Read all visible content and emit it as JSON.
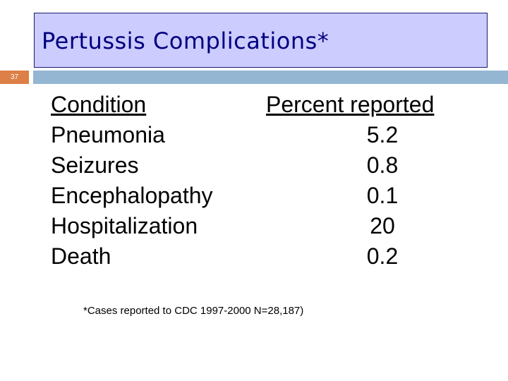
{
  "slide": {
    "title": "Pertussis Complications*",
    "number": "37",
    "footnote": "*Cases reported to CDC 1997-2000  N=28,187)"
  },
  "table": {
    "headers": [
      "Condition",
      "Percent reported"
    ],
    "rows": [
      [
        "Pneumonia",
        "5.2"
      ],
      [
        "Seizures",
        "0.8"
      ],
      [
        "Encephalopathy",
        "0.1"
      ],
      [
        "Hospitalization",
        "20"
      ],
      [
        "Death",
        "0.2"
      ]
    ]
  }
}
